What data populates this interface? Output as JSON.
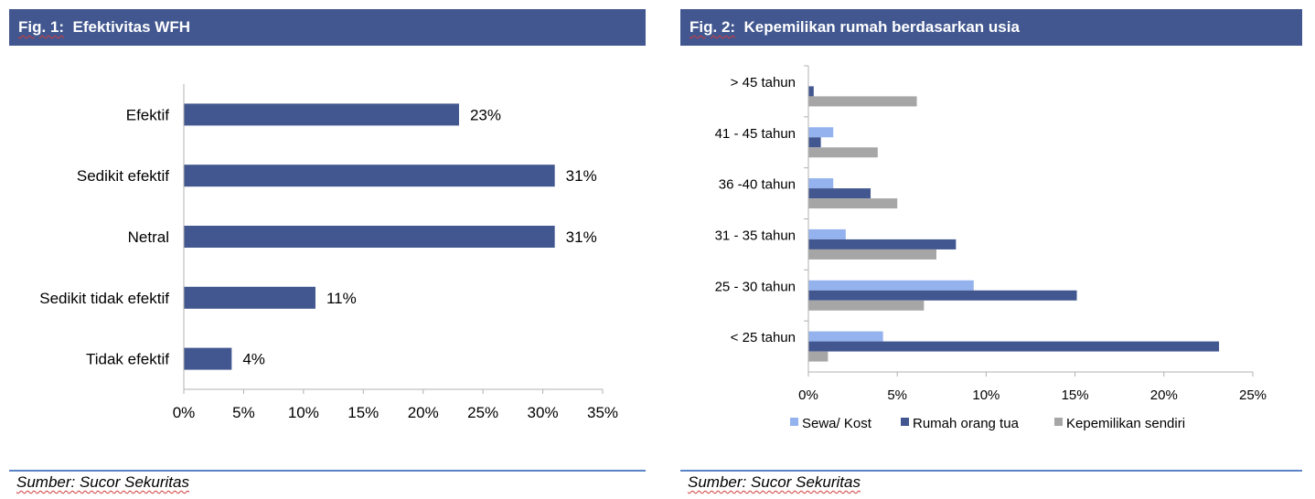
{
  "colors": {
    "header_bg": "#42578f",
    "bar_dark": "#42578f",
    "bar_light": "#94b3ee",
    "bar_gray": "#a6a6a6",
    "rule": "#5b84c6"
  },
  "figures": [
    {
      "fig_label": "Fig. 1:",
      "title": "Efektivitas WFH",
      "source_label": "Sumber: Sucor Sekuritas"
    },
    {
      "fig_label": "Fig. 2:",
      "title": "Kepemilikan rumah berdasarkan usia",
      "source_label": "Sumber: Sucor Sekuritas"
    }
  ],
  "chart_data": [
    {
      "type": "bar",
      "orientation": "horizontal",
      "title": "Efektivitas WFH",
      "categories": [
        "Efektif",
        "Sedikit efektif",
        "Netral",
        "Sedikit tidak efektif",
        "Tidak efektif"
      ],
      "values": [
        23,
        31,
        31,
        11,
        4
      ],
      "data_labels": [
        "23%",
        "31%",
        "31%",
        "11%",
        "4%"
      ],
      "xlim": [
        0,
        35
      ],
      "x_ticks": [
        "0%",
        "5%",
        "10%",
        "15%",
        "20%",
        "25%",
        "30%",
        "35%"
      ],
      "grid": false,
      "legend": "none"
    },
    {
      "type": "bar",
      "orientation": "horizontal",
      "title": "Kepemilikan rumah berdasarkan usia",
      "categories": [
        "> 45 tahun",
        "41 - 45 tahun",
        "36 -40 tahun",
        "31 - 35 tahun",
        "25 - 30 tahun",
        "< 25 tahun"
      ],
      "series": [
        {
          "name": "Sewa/ Kost",
          "values": [
            0,
            1.4,
            1.4,
            2.1,
            9.3,
            4.2
          ]
        },
        {
          "name": "Rumah orang tua",
          "values": [
            0.3,
            0.7,
            3.5,
            8.3,
            15.1,
            23.1
          ]
        },
        {
          "name": "Kepemilikan sendiri",
          "values": [
            6.1,
            3.9,
            5.0,
            7.2,
            6.5,
            1.1
          ]
        }
      ],
      "xlim": [
        0,
        25
      ],
      "x_ticks": [
        "0%",
        "5%",
        "10%",
        "15%",
        "20%",
        "25%"
      ],
      "grid": false,
      "legend": "bottom"
    }
  ]
}
